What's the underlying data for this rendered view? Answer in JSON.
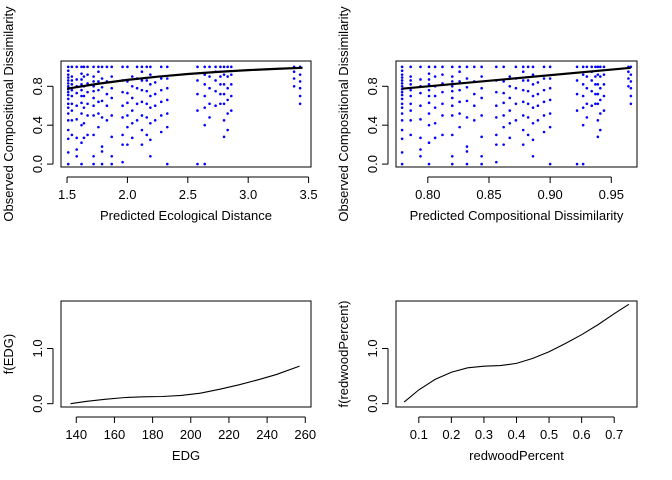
{
  "chart_data": [
    {
      "type": "scatter",
      "xlabel": "Predicted Ecological Distance",
      "ylabel": "Observed Compositional Dissimilarity",
      "xlim": [
        1.45,
        3.52
      ],
      "ylim": [
        -0.03,
        1.06
      ],
      "xticks": [
        "1.5",
        "2.0",
        "2.5",
        "3.0",
        "3.5"
      ],
      "yticks": [
        "0.0",
        "0.4",
        "0.8"
      ],
      "point_color": "#0000ff",
      "line_color": "#000000",
      "point_columns": [
        {
          "x": 1.51,
          "y": [
            0.0,
            0.12,
            0.26,
            0.35,
            0.45,
            0.52,
            0.58,
            0.62,
            0.67,
            0.71,
            0.74,
            0.77,
            0.8,
            0.83,
            0.86,
            0.89,
            0.92,
            0.96,
            1.0
          ]
        },
        {
          "x": 1.54,
          "y": [
            0.3,
            0.45,
            0.55,
            0.62,
            0.7,
            0.76,
            0.82,
            0.86,
            0.9,
            1.0
          ]
        },
        {
          "x": 1.58,
          "y": [
            0.08,
            0.15,
            0.27,
            0.46,
            0.6,
            0.73,
            0.8,
            0.87,
            1.0
          ]
        },
        {
          "x": 1.62,
          "y": [
            0.0,
            0.22,
            0.4,
            0.52,
            0.63,
            0.7,
            0.76,
            0.82,
            0.87,
            0.93,
            1.0
          ]
        },
        {
          "x": 1.64,
          "y": [
            0.27,
            0.42,
            0.58,
            0.7,
            0.8,
            0.9,
            1.0
          ]
        },
        {
          "x": 1.67,
          "y": [
            0.3,
            0.5,
            0.62,
            0.74,
            0.83,
            0.92,
            1.0
          ]
        },
        {
          "x": 1.72,
          "y": [
            0.0,
            0.08,
            0.3,
            0.5,
            0.6,
            0.68,
            0.75,
            0.8,
            0.85,
            0.9,
            1.0
          ]
        },
        {
          "x": 1.76,
          "y": [
            0.38,
            0.52,
            0.64,
            0.76,
            0.85,
            0.95,
            1.0
          ]
        },
        {
          "x": 1.79,
          "y": [
            0.0,
            0.13,
            0.18,
            0.48,
            0.65,
            0.79,
            0.88,
            1.0
          ]
        },
        {
          "x": 1.83,
          "y": [
            0.45,
            0.6,
            0.72,
            0.85,
            1.0
          ]
        },
        {
          "x": 1.87,
          "y": [
            0.0,
            0.08,
            0.28,
            0.5,
            0.68,
            0.78,
            0.9,
            1.0
          ]
        },
        {
          "x": 1.96,
          "y": [
            0.02,
            0.2,
            0.3,
            0.48,
            0.6,
            0.74,
            0.86,
            1.0
          ]
        },
        {
          "x": 2.0,
          "y": [
            0.2,
            0.38,
            0.5,
            0.63,
            0.73,
            0.85,
            1.0
          ]
        },
        {
          "x": 2.04,
          "y": [
            0.27,
            0.42,
            0.55,
            0.68,
            0.8,
            0.9
          ]
        },
        {
          "x": 2.08,
          "y": [
            0.45,
            0.62,
            0.78,
            0.88,
            1.0
          ]
        },
        {
          "x": 2.12,
          "y": [
            0.2,
            0.35,
            0.5,
            0.64,
            0.76,
            0.86,
            0.95,
            1.0
          ]
        },
        {
          "x": 2.16,
          "y": [
            0.3,
            0.48,
            0.62,
            0.75,
            0.86,
            1.0
          ]
        },
        {
          "x": 2.19,
          "y": [
            0.08,
            0.25,
            0.42,
            0.58,
            0.7,
            0.82,
            0.92,
            1.0
          ]
        },
        {
          "x": 2.23,
          "y": [
            0.45,
            0.6,
            0.72,
            0.84
          ]
        },
        {
          "x": 2.28,
          "y": [
            0.33,
            0.5,
            0.64,
            0.76,
            0.88,
            1.0
          ]
        },
        {
          "x": 2.33,
          "y": [
            0.0,
            0.38,
            0.52,
            0.66,
            0.78,
            0.88,
            1.0
          ]
        },
        {
          "x": 2.58,
          "y": [
            0.0,
            0.55,
            0.72,
            0.86,
            1.0
          ]
        },
        {
          "x": 2.64,
          "y": [
            0.0,
            0.4,
            0.58,
            0.7,
            0.82,
            0.92,
            1.0
          ]
        },
        {
          "x": 2.68,
          "y": [
            0.48,
            0.62,
            0.78,
            0.9,
            1.0
          ]
        },
        {
          "x": 2.73,
          "y": [
            0.6,
            0.75,
            0.86,
            0.95,
            1.0
          ]
        },
        {
          "x": 2.77,
          "y": [
            0.62,
            0.72,
            0.82,
            0.9,
            1.0
          ]
        },
        {
          "x": 2.8,
          "y": [
            0.28,
            0.45,
            0.62,
            0.72,
            0.82,
            0.92,
            1.0
          ]
        },
        {
          "x": 2.83,
          "y": [
            0.35,
            0.52,
            0.66,
            0.78,
            0.9,
            1.0
          ]
        },
        {
          "x": 2.86,
          "y": [
            0.55,
            0.7,
            0.82,
            0.92,
            1.0
          ]
        },
        {
          "x": 3.38,
          "y": [
            0.8,
            0.88,
            0.95,
            1.0
          ]
        },
        {
          "x": 3.43,
          "y": [
            0.62,
            0.7,
            0.78,
            0.85,
            0.92,
            1.0
          ]
        }
      ],
      "fitted_line": {
        "x": [
          1.5,
          1.75,
          2.0,
          2.25,
          2.5,
          2.75,
          3.0,
          3.25,
          3.45
        ],
        "y": [
          0.775,
          0.825,
          0.866,
          0.899,
          0.926,
          0.948,
          0.966,
          0.98,
          0.99
        ]
      }
    },
    {
      "type": "scatter",
      "xlabel": "Predicted Compositional Dissimilarity",
      "ylabel": "Observed Compositional Dissimilarity",
      "xlim": [
        0.774,
        0.971
      ],
      "ylim": [
        -0.03,
        1.06
      ],
      "xticks": [
        "0.80",
        "0.85",
        "0.90",
        "0.95"
      ],
      "yticks": [
        "0.0",
        "0.4",
        "0.8"
      ],
      "point_color": "#0000ff",
      "line_color": "#000000",
      "point_columns": [
        {
          "x": 0.779,
          "y": [
            0.0,
            0.12,
            0.26,
            0.35,
            0.45,
            0.52,
            0.58,
            0.62,
            0.67,
            0.71,
            0.74,
            0.77,
            0.8,
            0.83,
            0.86,
            0.89,
            0.92,
            0.96,
            1.0
          ]
        },
        {
          "x": 0.786,
          "y": [
            0.3,
            0.45,
            0.55,
            0.62,
            0.7,
            0.76,
            0.82,
            0.86,
            0.9,
            1.0
          ]
        },
        {
          "x": 0.794,
          "y": [
            0.08,
            0.15,
            0.27,
            0.46,
            0.6,
            0.73,
            0.8,
            0.87,
            1.0
          ]
        },
        {
          "x": 0.801,
          "y": [
            0.0,
            0.22,
            0.4,
            0.52,
            0.63,
            0.7,
            0.76,
            0.82,
            0.87,
            0.93,
            1.0
          ]
        },
        {
          "x": 0.806,
          "y": [
            0.27,
            0.42,
            0.58,
            0.7,
            0.8,
            0.9,
            1.0
          ]
        },
        {
          "x": 0.812,
          "y": [
            0.3,
            0.5,
            0.62,
            0.74,
            0.83,
            0.92,
            1.0
          ]
        },
        {
          "x": 0.82,
          "y": [
            0.0,
            0.08,
            0.3,
            0.5,
            0.6,
            0.68,
            0.75,
            0.8,
            0.85,
            0.9,
            1.0
          ]
        },
        {
          "x": 0.826,
          "y": [
            0.38,
            0.52,
            0.64,
            0.76,
            0.85,
            0.95,
            1.0
          ]
        },
        {
          "x": 0.832,
          "y": [
            0.0,
            0.13,
            0.18,
            0.48,
            0.65,
            0.79,
            0.88,
            1.0
          ]
        },
        {
          "x": 0.838,
          "y": [
            0.45,
            0.6,
            0.72,
            0.85,
            1.0
          ]
        },
        {
          "x": 0.844,
          "y": [
            0.0,
            0.08,
            0.28,
            0.5,
            0.68,
            0.78,
            0.9,
            1.0
          ]
        },
        {
          "x": 0.856,
          "y": [
            0.02,
            0.2,
            0.3,
            0.48,
            0.6,
            0.74,
            0.86,
            1.0
          ]
        },
        {
          "x": 0.862,
          "y": [
            0.2,
            0.38,
            0.5,
            0.63,
            0.73,
            0.85,
            1.0
          ]
        },
        {
          "x": 0.867,
          "y": [
            0.27,
            0.42,
            0.55,
            0.68,
            0.8,
            0.9
          ]
        },
        {
          "x": 0.872,
          "y": [
            0.45,
            0.62,
            0.78,
            0.88,
            1.0
          ]
        },
        {
          "x": 0.878,
          "y": [
            0.2,
            0.35,
            0.5,
            0.64,
            0.76,
            0.86,
            0.95,
            1.0
          ]
        },
        {
          "x": 0.882,
          "y": [
            0.3,
            0.48,
            0.62,
            0.75,
            0.86,
            1.0
          ]
        },
        {
          "x": 0.886,
          "y": [
            0.08,
            0.25,
            0.42,
            0.58,
            0.7,
            0.82,
            0.92,
            1.0
          ]
        },
        {
          "x": 0.89,
          "y": [
            0.45,
            0.6,
            0.72,
            0.84
          ]
        },
        {
          "x": 0.895,
          "y": [
            0.33,
            0.5,
            0.64,
            0.76,
            0.88,
            1.0
          ]
        },
        {
          "x": 0.9,
          "y": [
            0.0,
            0.38,
            0.52,
            0.66,
            0.78,
            0.88,
            1.0
          ]
        },
        {
          "x": 0.922,
          "y": [
            0.0,
            0.55,
            0.72,
            0.86,
            1.0
          ]
        },
        {
          "x": 0.927,
          "y": [
            0.0,
            0.4,
            0.58,
            0.7,
            0.82,
            0.92,
            1.0
          ]
        },
        {
          "x": 0.93,
          "y": [
            0.48,
            0.62,
            0.78,
            0.9,
            1.0
          ]
        },
        {
          "x": 0.934,
          "y": [
            0.6,
            0.75,
            0.86,
            0.95,
            1.0
          ]
        },
        {
          "x": 0.937,
          "y": [
            0.62,
            0.72,
            0.82,
            0.9,
            1.0
          ]
        },
        {
          "x": 0.939,
          "y": [
            0.28,
            0.45,
            0.62,
            0.72,
            0.82,
            0.92,
            1.0
          ]
        },
        {
          "x": 0.941,
          "y": [
            0.35,
            0.52,
            0.66,
            0.78,
            0.9,
            1.0
          ]
        },
        {
          "x": 0.944,
          "y": [
            0.55,
            0.7,
            0.82,
            0.92,
            1.0
          ]
        },
        {
          "x": 0.964,
          "y": [
            0.8,
            0.88,
            0.95,
            1.0
          ]
        },
        {
          "x": 0.966,
          "y": [
            0.62,
            0.7,
            0.78,
            0.85,
            0.92,
            1.0
          ]
        }
      ],
      "fitted_line": {
        "x": [
          0.779,
          0.966
        ],
        "y": [
          0.775,
          0.99
        ]
      }
    },
    {
      "type": "line",
      "xlabel": "EDG",
      "ylabel": "f(EDG)",
      "xlim": [
        132,
        263
      ],
      "ylim": [
        -0.06,
        1.86
      ],
      "xticks": [
        "140",
        "160",
        "180",
        "200",
        "220",
        "240",
        "260"
      ],
      "yticks": [
        "0.0",
        "1.0"
      ],
      "line_color": "#000000",
      "x": [
        137,
        145,
        155,
        165,
        175,
        185,
        195,
        205,
        215,
        225,
        235,
        245,
        257
      ],
      "y": [
        0.0,
        0.04,
        0.08,
        0.11,
        0.125,
        0.13,
        0.15,
        0.19,
        0.26,
        0.34,
        0.43,
        0.53,
        0.68
      ]
    },
    {
      "type": "line",
      "xlabel": "redwoodPercent",
      "ylabel": "f(redwoodPercent)",
      "xlim": [
        0.03,
        0.77
      ],
      "ylim": [
        -0.06,
        1.86
      ],
      "xticks": [
        "0.1",
        "0.2",
        "0.3",
        "0.4",
        "0.5",
        "0.6",
        "0.7"
      ],
      "yticks": [
        "0.0",
        "1.0"
      ],
      "line_color": "#000000",
      "x": [
        0.055,
        0.1,
        0.15,
        0.2,
        0.25,
        0.3,
        0.35,
        0.4,
        0.45,
        0.5,
        0.55,
        0.6,
        0.65,
        0.7,
        0.745
      ],
      "y": [
        0.03,
        0.25,
        0.44,
        0.57,
        0.65,
        0.68,
        0.69,
        0.73,
        0.82,
        0.94,
        1.09,
        1.25,
        1.43,
        1.63,
        1.8
      ]
    }
  ]
}
